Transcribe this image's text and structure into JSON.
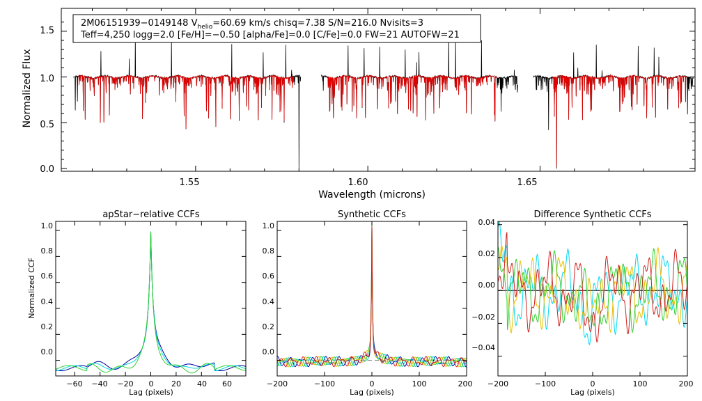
{
  "chart_data": [
    {
      "type": "line",
      "title": "",
      "xlabel": "Wavelength (microns)",
      "ylabel": "Normalized Flux",
      "xlim": [
        1.511,
        1.695
      ],
      "ylim": [
        -0.03,
        1.75
      ],
      "xticks": [
        "1.55",
        "1.60",
        "1.65"
      ],
      "yticks": [
        "0.0",
        "0.5",
        "1.0",
        "1.5"
      ],
      "info": {
        "line1_pre": "2M06151939−0149148  V",
        "line1_sub": "helio",
        "line1_post": "=60.69 km/s  chisq=7.38  S/N=216.0  Nvisits=3",
        "line2": "Teff=4,250 logg=2.0 [Fe/H]=−0.50 [alpha/Fe]=0.0 [C/Fe]=0.0 FW=21 AUTOFW=21"
      },
      "chips": [
        [
          1.5145,
          1.5805
        ],
        [
          1.5865,
          1.6435
        ],
        [
          1.648,
          1.6945
        ]
      ],
      "series": [
        {
          "name": "observed spectrum",
          "color": "#000000"
        },
        {
          "name": "model spectrum",
          "color": "#e00000"
        }
      ]
    },
    {
      "type": "line",
      "title": "apStar−relative CCFs",
      "xlabel": "Lag (pixels)",
      "ylabel": "Normalized CCF",
      "xlim": [
        -75,
        75
      ],
      "ylim": [
        -0.12,
        1.07
      ],
      "xticks": [
        "−60",
        "−40",
        "−20",
        "0",
        "20",
        "40",
        "60"
      ],
      "yticks": [
        "0.0",
        "0.2",
        "0.4",
        "0.6",
        "0.8",
        "1.0"
      ],
      "series": [
        {
          "name": "visit 1",
          "color": "#0000a0"
        },
        {
          "name": "visit 2",
          "color": "#00d8d8"
        },
        {
          "name": "visit 3",
          "color": "#30d030"
        }
      ]
    },
    {
      "type": "line",
      "title": "Synthetic CCFs",
      "xlabel": "Lag (pixels)",
      "ylabel": "",
      "xlim": [
        -200,
        200
      ],
      "ylim": [
        -0.12,
        1.07
      ],
      "xticks": [
        "−200",
        "−100",
        "0",
        "100",
        "200"
      ],
      "yticks": [
        "0.0",
        "0.2",
        "0.4",
        "0.6",
        "0.8",
        "1.0"
      ],
      "series": [
        {
          "name": "visit 1",
          "color": "#0000a0"
        },
        {
          "name": "visit 2",
          "color": "#00d8d8"
        },
        {
          "name": "visit 3",
          "color": "#30d030"
        },
        {
          "name": "visit 4",
          "color": "#e8c000"
        },
        {
          "name": "visit 5",
          "color": "#d02020"
        }
      ]
    },
    {
      "type": "line",
      "title": "Difference Synthetic CCFs",
      "xlabel": "Lag (pixels)",
      "ylabel": "",
      "xlim": [
        -200,
        200
      ],
      "ylim": [
        -0.052,
        0.042
      ],
      "xticks": [
        "−200",
        "−100",
        "0",
        "100",
        "200"
      ],
      "yticks": [
        "−0.04",
        "−0.02",
        "0.00",
        "0.02",
        "0.04"
      ],
      "series": [
        {
          "name": "visit 1",
          "color": "#00d8f0"
        },
        {
          "name": "visit 2",
          "color": "#e8c000"
        },
        {
          "name": "visit 3",
          "color": "#30d030"
        },
        {
          "name": "visit 4",
          "color": "#d02020"
        }
      ]
    }
  ]
}
